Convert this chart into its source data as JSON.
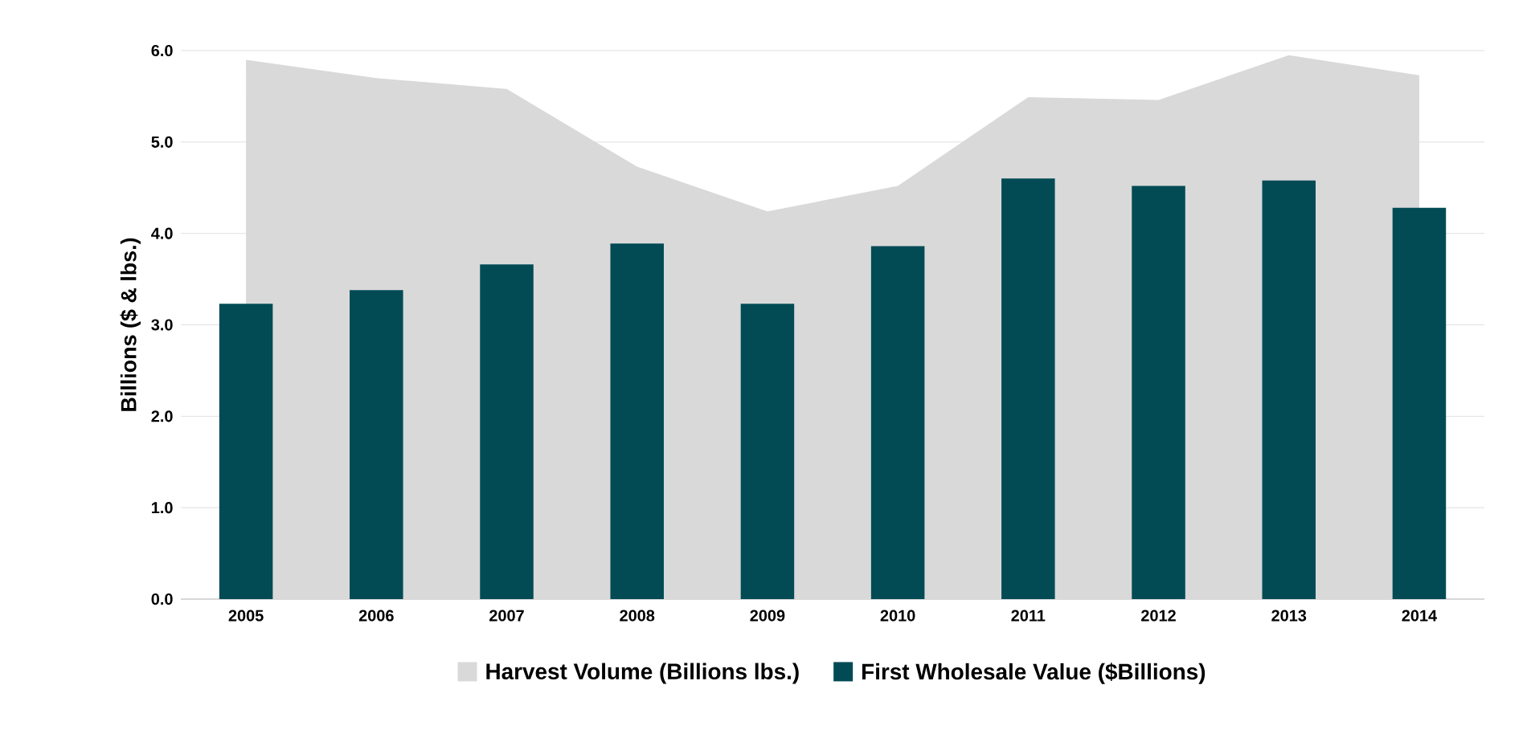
{
  "chart_data": {
    "type": "bar",
    "ylabel": "Billions ($ & lbs.)",
    "categories": [
      "2005",
      "2006",
      "2007",
      "2008",
      "2009",
      "2010",
      "2011",
      "2012",
      "2013",
      "2014"
    ],
    "series": [
      {
        "name": "Harvest Volume (Billions lbs.)",
        "type": "area",
        "color": "#d9d9d9",
        "values": [
          5.9,
          5.7,
          5.58,
          4.73,
          4.24,
          4.52,
          5.49,
          5.46,
          5.95,
          5.73
        ]
      },
      {
        "name": "First Wholesale Value ($Billions)",
        "color": "#024b55",
        "values": [
          3.23,
          3.38,
          3.66,
          3.89,
          3.23,
          3.86,
          4.6,
          4.52,
          4.58,
          4.28
        ]
      }
    ],
    "ylim": [
      0,
      6
    ],
    "yticks": [
      {
        "value": 0,
        "label": "0.0"
      },
      {
        "value": 1,
        "label": "1.0"
      },
      {
        "value": 2,
        "label": "2.0"
      },
      {
        "value": 3,
        "label": "3.0"
      },
      {
        "value": 4,
        "label": "4.0"
      },
      {
        "value": 5,
        "label": "5.0"
      },
      {
        "value": 6,
        "label": "6.0"
      }
    ],
    "grid": "y",
    "legend": "bottom"
  }
}
